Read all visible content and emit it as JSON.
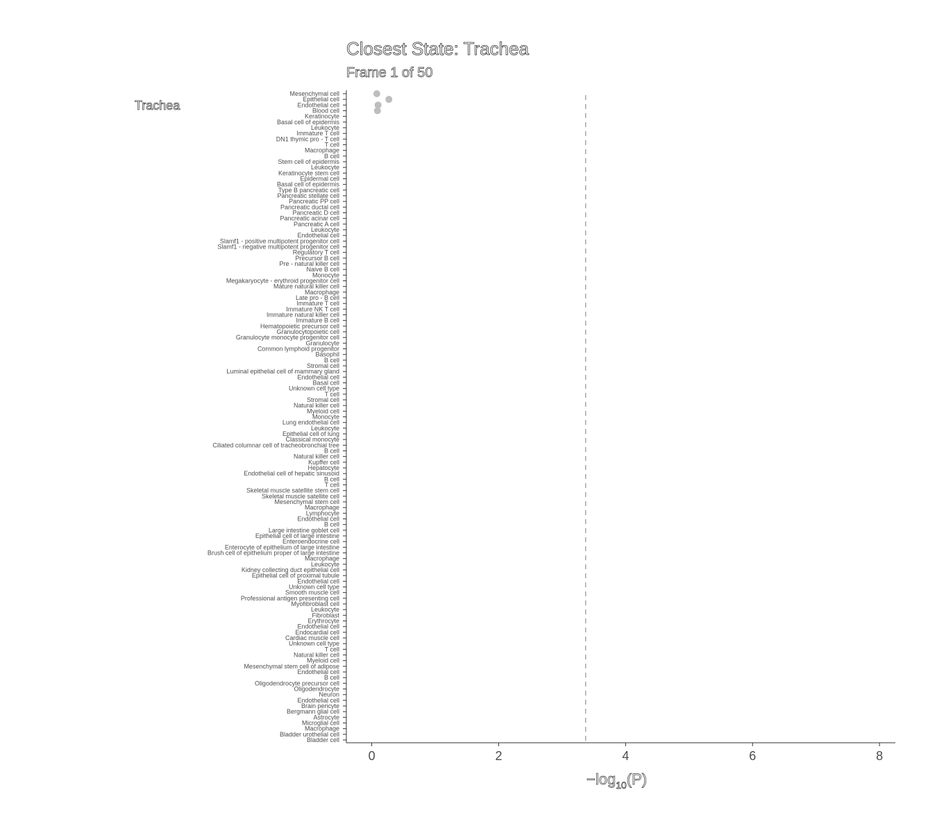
{
  "chart_data": {
    "type": "scatter",
    "title": "Closest State: Trachea",
    "subtitle": "Frame 1 of 50",
    "facet_label": "Trachea",
    "xlabel": {
      "prefix": "−log",
      "sub": "10",
      "suffix": "(P)"
    },
    "xlim": [
      -0.4,
      8.25
    ],
    "xticks": [
      0,
      2,
      4,
      6,
      8
    ],
    "threshold": 3.37,
    "point_color": "#bebebe",
    "threshold_color": "#a6a6a6",
    "categories": [
      "Mesenchymal cell",
      "Epithelial cell",
      "Endothelial cell",
      "Blood cell",
      "Keratinocyte",
      "Basal cell of epidermis",
      "Leukocyte",
      "Immature T cell",
      "DN1 thymic pro - T cell",
      "T cell",
      "Macrophage",
      "B cell",
      "Stem cell of epidermis",
      "Leukocyte",
      "Keratinocyte stem cell",
      "Epidermal cell",
      "Basal cell of epidermis",
      "Type B pancreatic cell",
      "Pancreatic stellate cell",
      "Pancreatic PP cell",
      "Pancreatic ductal cell",
      "Pancreatic D cell",
      "Pancreatic acinar cell",
      "Pancreatic A cell",
      "Leukocyte",
      "Endothelial cell",
      "Slamf1 - positive multipotent progenitor cell",
      "Slamf1 - negative multipotent progenitor cell",
      "Regulatory T cell",
      "Precursor B cell",
      "Pre - natural killer cell",
      "Naive B cell",
      "Monocyte",
      "Megakaryocyte - erythroid progenitor cell",
      "Mature natural killer cell",
      "Macrophage",
      "Late pro - B cell",
      "Immature T cell",
      "Immature NK T cell",
      "Immature natural killer cell",
      "Immature B cell",
      "Hematopoietic precursor cell",
      "Granulocytopoietic cell",
      "Granulocyte monocyte progenitor cell",
      "Granulocyte",
      "Common lymphoid progenitor",
      "Basophil",
      "B cell",
      "Stromal cell",
      "Luminal epithelial cell of mammary gland",
      "Endothelial cell",
      "Basal cell",
      "Unknown cell type",
      "T cell",
      "Stromal cell",
      "Natural killer cell",
      "Myeloid cell",
      "Monocyte",
      "Lung endothelial cell",
      "Leukocyte",
      "Epithelial cell of lung",
      "Classical monocyte",
      "Ciliated columnar cell of tracheobronchial tree",
      "B cell",
      "Natural killer cell",
      "Kupffer cell",
      "Hepatocyte",
      "Endothelial cell of hepatic sinusoid",
      "B cell",
      "T cell",
      "Skeletal muscle satellite stem cell",
      "Skeletal muscle satellite cell",
      "Mesenchymal stem cell",
      "Macrophage",
      "Lymphocyte",
      "Endothelial cell",
      "B cell",
      "Large intestine goblet cell",
      "Epithelial cell of large intestine",
      "Enteroendocrine cell",
      "Enterocyte of epithelium of large intestine",
      "Brush cell of epithelium proper of large intestine",
      "Macrophage",
      "Leukocyte",
      "Kidney collecting duct epithelial cell",
      "Epithelial cell of proximal tubule",
      "Endothelial cell",
      "Unknown cell type",
      "Smooth muscle cell",
      "Professional antigen presenting cell",
      "Myofibroblast cell",
      "Leukocyte",
      "Fibroblast",
      "Erythrocyte",
      "Endothelial cell",
      "Endocardial cell",
      "Cardiac muscle cell",
      "Unknown cell type",
      "T cell",
      "Natural killer cell",
      "Myeloid cell",
      "Mesenchymal stem cell of adipose",
      "Endothelial cell",
      "B cell",
      "Oligodendrocyte precursor cell",
      "Oligodendrocyte",
      "Neuron",
      "Endothelial cell",
      "Brain pericyte",
      "Bergmann glial cell",
      "Astrocyte",
      "Microglial cell",
      "Macrophage",
      "Bladder urothelial cell",
      "Bladder cell"
    ],
    "points": [
      {
        "category_index": 0,
        "x": 0.08
      },
      {
        "category_index": 1,
        "x": 0.27
      },
      {
        "category_index": 2,
        "x": 0.1
      },
      {
        "category_index": 3,
        "x": 0.09
      }
    ]
  }
}
